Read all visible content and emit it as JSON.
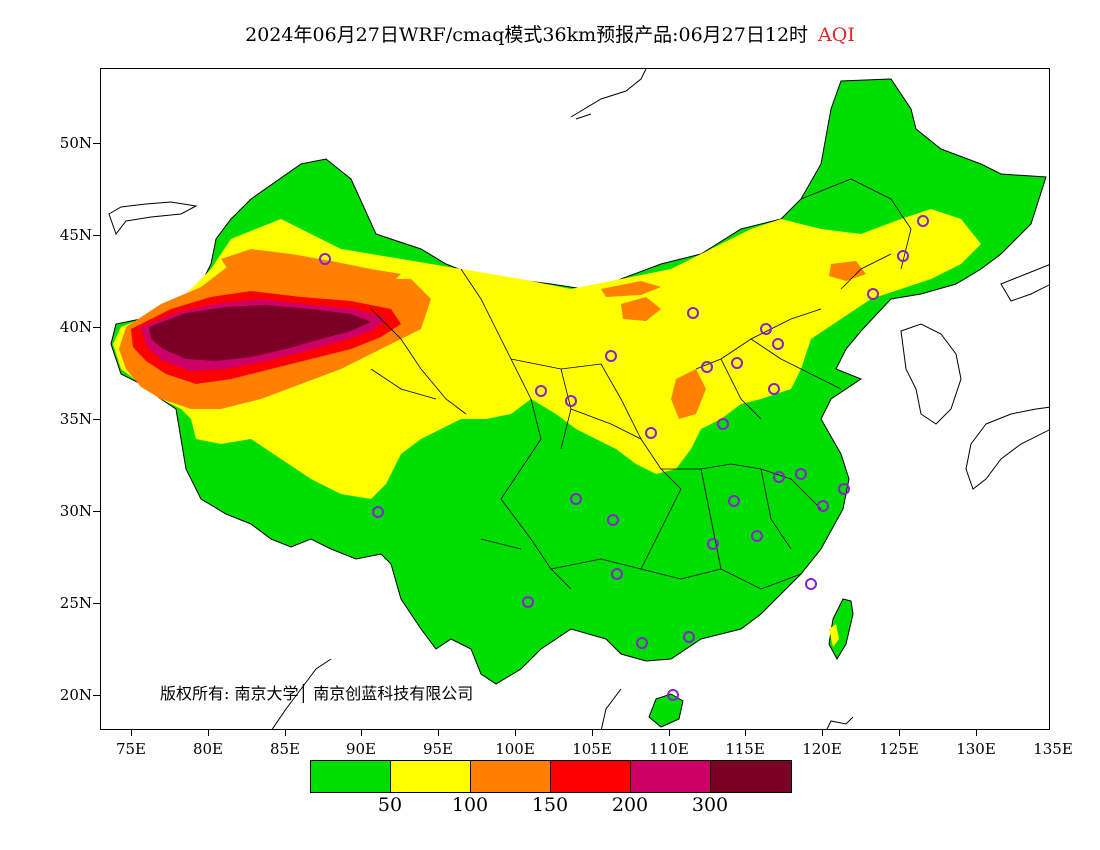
{
  "title": {
    "main": "2024年06月27日WRF/cmaq模式36km预报产品:06月27日12时",
    "product": "AQI"
  },
  "map": {
    "lat_labels": [
      "50N",
      "45N",
      "40N",
      "35N",
      "30N",
      "25N",
      "20N"
    ],
    "lon_labels": [
      "75E",
      "80E",
      "85E",
      "90E",
      "95E",
      "100E",
      "105E",
      "110E",
      "115E",
      "120E",
      "125E",
      "130E",
      "135E"
    ],
    "copyright": "版权所有: 南京大学│ 南京创蓝科技有限公司",
    "colors": {
      "land_good": "#00dd00",
      "moderate": "#ffff00",
      "usg": "#ff8000",
      "unhealthy": "#ff0000",
      "very_unhealthy": "#cc0066",
      "hazardous": "#7a0028",
      "station_marker": "#8822cc"
    }
  },
  "legend": {
    "colors": [
      "#00dd00",
      "#ffff00",
      "#ff8000",
      "#ff0000",
      "#cc0066",
      "#7a0028"
    ],
    "labels": [
      "50",
      "100",
      "150",
      "200",
      "300"
    ]
  }
}
